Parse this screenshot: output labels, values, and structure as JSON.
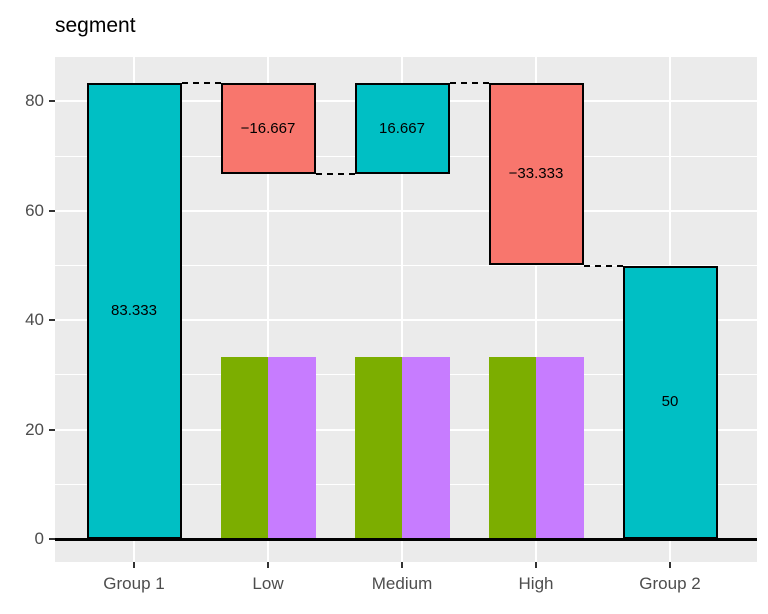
{
  "chart_data": {
    "type": "bar",
    "subtype": "waterfall",
    "title": "segment",
    "xlabel": "",
    "ylabel": "",
    "legend_position": "none",
    "grid": true,
    "categories": [
      "Group 1",
      "Low",
      "Medium",
      "High",
      "Group 2"
    ],
    "y_axis": {
      "ticks": [
        0,
        20,
        40,
        60,
        80
      ],
      "minor_ticks": [
        10,
        30,
        50,
        70
      ],
      "range": [
        -4.2,
        87.5
      ]
    },
    "waterfall": [
      {
        "category": "Group 1",
        "start": 0,
        "end": 83.333,
        "change": 83.333,
        "label": "83.333",
        "color_key": "total"
      },
      {
        "category": "Low",
        "start": 83.333,
        "end": 66.667,
        "change": -16.667,
        "label": "−16.667",
        "color_key": "decrease"
      },
      {
        "category": "Medium",
        "start": 66.667,
        "end": 83.333,
        "change": 16.667,
        "label": "16.667",
        "color_key": "increase"
      },
      {
        "category": "High",
        "start": 83.333,
        "end": 50,
        "change": -33.333,
        "label": "−33.333",
        "color_key": "decrease"
      },
      {
        "category": "Group 2",
        "start": 50,
        "end": 0,
        "change": 50,
        "label": "50",
        "color_key": "total"
      }
    ],
    "background_bars": [
      {
        "category": "Low",
        "series": [
          {
            "name": "green",
            "value": 33.333
          },
          {
            "name": "purple",
            "value": 33.333
          }
        ]
      },
      {
        "category": "Medium",
        "series": [
          {
            "name": "green",
            "value": 33.333
          },
          {
            "name": "purple",
            "value": 33.333
          }
        ]
      },
      {
        "category": "High",
        "series": [
          {
            "name": "green",
            "value": 33.333
          },
          {
            "name": "purple",
            "value": 33.333
          }
        ]
      }
    ],
    "connectors": [
      {
        "from_category": "Group 1",
        "to_category": "Low",
        "value": 83.333
      },
      {
        "from_category": "Low",
        "to_category": "Medium",
        "value": 66.667
      },
      {
        "from_category": "Medium",
        "to_category": "High",
        "value": 83.333
      },
      {
        "from_category": "High",
        "to_category": "Group 2",
        "value": 50
      }
    ],
    "colors": {
      "total": "#00BFC4",
      "increase": "#00BFC4",
      "decrease": "#F8766D",
      "green": "#7CAE00",
      "purple": "#C77CFF",
      "panel_background": "#EBEBEB",
      "gridline": "#FFFFFF",
      "bar_outline": "#000000",
      "zero_line": "#000000",
      "connector": "#000000",
      "axis_text": "#4D4D4D",
      "tick_mark": "#333333",
      "title_color": "#000000"
    }
  }
}
